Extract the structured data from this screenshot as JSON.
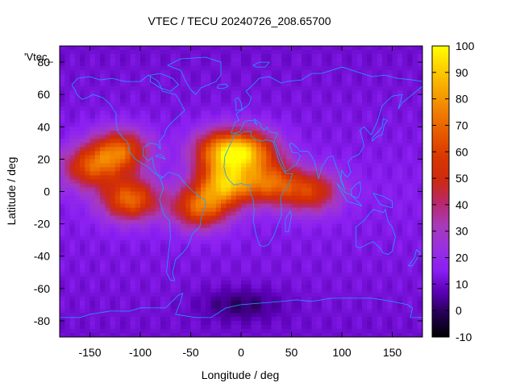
{
  "chart_data": {
    "type": "heatmap",
    "title": "VTEC / TECU 20240726_208.65700",
    "xlabel": "Longitude / deg",
    "ylabel": "Latitude / deg",
    "legend_key": "'Vtec_",
    "xlim": [
      -180,
      180
    ],
    "ylim": [
      -90,
      90
    ],
    "xticks": [
      -150,
      -100,
      -50,
      0,
      50,
      100,
      150
    ],
    "yticks": [
      -80,
      -60,
      -40,
      -20,
      0,
      20,
      40,
      60,
      80
    ],
    "colorbar": {
      "range": [
        -10,
        100
      ],
      "ticks": [
        -10,
        0,
        10,
        20,
        30,
        40,
        50,
        60,
        70,
        80,
        90,
        100
      ],
      "palette": [
        "#000000",
        "#22004f",
        "#5a00b5",
        "#8a1ff2",
        "#9a30e0",
        "#a83ab8",
        "#b8286a",
        "#cc2a10",
        "#d83600",
        "#e65600",
        "#f07c00",
        "#f7a400",
        "#fdd000",
        "#ffff00"
      ]
    },
    "coastline_color": "#1ea0ff",
    "grid": false,
    "field_features": [
      {
        "feature": "background",
        "value": 15
      },
      {
        "feature": "equatorial-anomaly",
        "lon": -110,
        "lat": -5,
        "value": 70
      },
      {
        "feature": "equatorial-anomaly",
        "lon": -150,
        "lat": 15,
        "value": 60
      },
      {
        "feature": "equatorial-anomaly",
        "lon": -120,
        "lat": 25,
        "value": 68
      },
      {
        "feature": "equatorial-anomaly",
        "lon": -40,
        "lat": -10,
        "value": 68
      },
      {
        "feature": "equatorial-anomaly",
        "lon": -15,
        "lat": 5,
        "value": 78
      },
      {
        "feature": "equatorial-anomaly",
        "lon": -20,
        "lat": 25,
        "value": 72
      },
      {
        "feature": "equatorial-anomaly",
        "lon": 10,
        "lat": 25,
        "value": 68
      },
      {
        "feature": "equatorial-anomaly",
        "lon": 30,
        "lat": 5,
        "value": 62
      },
      {
        "feature": "equatorial-anomaly",
        "lon": 70,
        "lat": 0,
        "value": 55
      },
      {
        "feature": "minimum",
        "lon": 0,
        "lat": -70,
        "value": 4
      }
    ]
  }
}
